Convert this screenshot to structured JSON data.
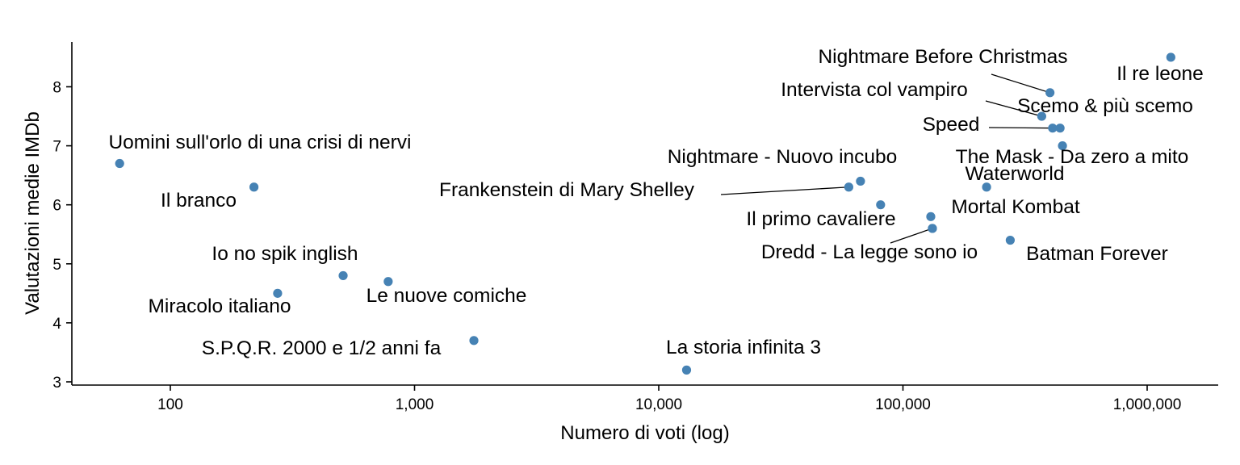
{
  "chart_data": {
    "type": "scatter",
    "title": "",
    "xlabel": "Numero di voti (log)",
    "ylabel": "Valutazioni medie IMDb",
    "x_scale": "log10",
    "xlim": [
      40,
      2000000
    ],
    "ylim": [
      2.95,
      8.75
    ],
    "x_ticks": [
      100,
      1000,
      10000,
      100000,
      1000000
    ],
    "x_tick_labels": [
      "100",
      "1,000",
      "10,000",
      "100,000",
      "1,000,000"
    ],
    "y_ticks": [
      3,
      4,
      5,
      6,
      7,
      8
    ],
    "y_tick_labels": [
      "3",
      "4",
      "5",
      "6",
      "7",
      "8"
    ],
    "grid": false,
    "point_color": "#4682b4",
    "points": [
      {
        "label": "Il re leone",
        "x": 1250000,
        "y": 8.5
      },
      {
        "label": "Nightmare Before Christmas",
        "x": 400000,
        "y": 7.9
      },
      {
        "label": "Intervista col vampiro",
        "x": 370000,
        "y": 7.5
      },
      {
        "label": "Scemo & più scemo",
        "x": 440000,
        "y": 7.3
      },
      {
        "label": "Speed",
        "x": 410000,
        "y": 7.3
      },
      {
        "label": "The Mask - Da zero a mito",
        "x": 450000,
        "y": 7.0
      },
      {
        "label": "Waterworld",
        "x": 220000,
        "y": 6.3
      },
      {
        "label": "Nightmare - Nuovo incubo",
        "x": 67000,
        "y": 6.4
      },
      {
        "label": "Frankenstein di Mary Shelley",
        "x": 60000,
        "y": 6.3
      },
      {
        "label": "",
        "x": 81000,
        "y": 6.0
      },
      {
        "label": "Il primo cavaliere",
        "x": 130000,
        "y": 5.8
      },
      {
        "label": "Mortal Kombat",
        "x": 132000,
        "y": 5.6
      },
      {
        "label": "Dredd - La legge sono io",
        "x": 132000,
        "y": 5.6
      },
      {
        "label": "Batman Forever",
        "x": 275000,
        "y": 5.4
      },
      {
        "label": "Uomini sull'orlo di una crisi di nervi",
        "x": 62,
        "y": 6.7
      },
      {
        "label": "Il branco",
        "x": 220,
        "y": 6.3
      },
      {
        "label": "Io no spik inglish",
        "x": 510,
        "y": 4.8
      },
      {
        "label": "Le nuove comiche",
        "x": 780,
        "y": 4.7
      },
      {
        "label": "Miracolo italiano",
        "x": 275,
        "y": 4.5
      },
      {
        "label": "S.P.Q.R. 2000 e 1/2 anni fa",
        "x": 1750,
        "y": 3.7
      },
      {
        "label": "La storia infinita 3",
        "x": 13000,
        "y": 3.2
      }
    ]
  }
}
